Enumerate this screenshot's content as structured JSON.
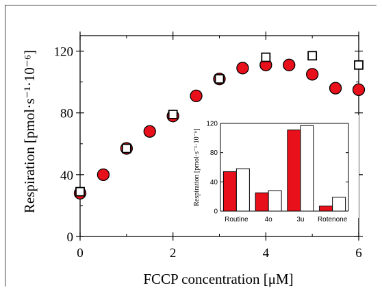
{
  "colors": {
    "red": "#e8101a",
    "white": "#ffffff",
    "axis": "#000000"
  },
  "chart_data": [
    {
      "type": "scatter",
      "title": "",
      "xlabel": "FCCP concentration [μM]",
      "ylabel": "Respiration [pmol·s⁻¹·10⁻⁶]",
      "xlim": [
        0,
        6
      ],
      "ylim": [
        0,
        130
      ],
      "xticks": [
        "0",
        "2",
        "4",
        "6"
      ],
      "yticks": [
        "0",
        "40",
        "80",
        "120"
      ],
      "series": [
        {
          "marker": "circle",
          "color": "#e8101a",
          "x": [
            0,
            0.5,
            1,
            1.5,
            2,
            2.5,
            3,
            3.5,
            4,
            4.5,
            5,
            5.5,
            6
          ],
          "y": [
            28,
            40,
            57,
            68,
            78,
            91,
            102,
            109,
            111,
            111,
            105,
            96,
            95
          ]
        },
        {
          "marker": "square",
          "color": "#ffffff",
          "x": [
            0,
            1,
            2,
            3,
            4,
            5,
            6
          ],
          "y": [
            29,
            57,
            79,
            102,
            116,
            117,
            111
          ]
        }
      ]
    },
    {
      "type": "bar",
      "title": "",
      "ylabel": "Respiration [pmol·s⁻¹·10⁻⁶]",
      "ylim": [
        0,
        120
      ],
      "yticks": [
        "0",
        "40",
        "80",
        "120"
      ],
      "categories": [
        "Routine",
        "4o",
        "3u",
        "Rotenone"
      ],
      "series": [
        {
          "color": "#e8101a",
          "values": [
            54,
            25,
            111,
            7
          ]
        },
        {
          "color": "#ffffff",
          "values": [
            58,
            28,
            117,
            19
          ]
        }
      ]
    }
  ]
}
